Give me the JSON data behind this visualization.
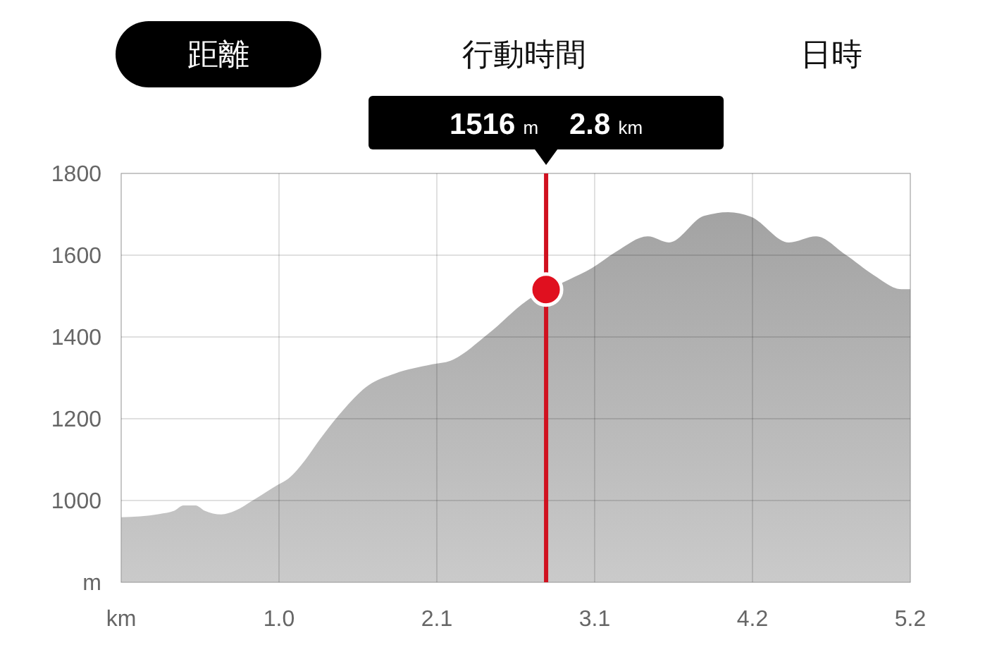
{
  "chart_data": {
    "type": "area",
    "x": [
      0,
      0.25,
      0.35,
      0.41,
      0.49,
      0.55,
      0.66,
      0.75,
      0.87,
      1.03,
      1.1,
      1.21,
      1.31,
      1.43,
      1.63,
      1.8,
      2.05,
      2.17,
      2.42,
      2.67,
      2.95,
      3.1,
      3.26,
      3.47,
      3.61,
      3.84,
      4.0,
      4.15,
      4.4,
      4.58,
      4.77,
      4.96,
      5.14,
      5.2
    ],
    "series": [
      {
        "color": "#a3a3a3",
        "values": [
          959,
          967,
          975,
          988,
          988,
          975,
          966,
          975,
          1001,
          1038,
          1053,
          1098,
          1150,
          1207,
          1282,
          1310,
          1333,
          1342,
          1408,
          1488,
          1540,
          1568,
          1608,
          1646,
          1631,
          1696,
          1705,
          1694,
          1631,
          1646,
          1602,
          1551,
          1517,
          1517
        ]
      },
      {
        "type": "scatter",
        "x": [
          2.8
        ],
        "color": "#e0101f",
        "marker": "circle",
        "values": [
          1516
        ]
      }
    ],
    "xlim": [
      0,
      5.2
    ],
    "ylim": [
      800,
      1800
    ],
    "xticks": [
      {
        "value": 0,
        "label": "km"
      },
      {
        "value": 1.04,
        "label": "1.0"
      },
      {
        "value": 2.08,
        "label": "2.1"
      },
      {
        "value": 3.12,
        "label": "3.1"
      },
      {
        "value": 4.16,
        "label": "4.2"
      },
      5.2
    ],
    "yticks": [
      {
        "value": 800,
        "label": "m"
      },
      1000,
      1200,
      1400,
      1600,
      1800
    ],
    "grid": true,
    "ref_lines": [
      {
        "axis": "x",
        "value": 2.8,
        "color": "#d0111f"
      }
    ],
    "annotations": [
      "距離",
      "行動時間",
      "日時",
      "1516 m 2.8 km"
    ]
  }
}
